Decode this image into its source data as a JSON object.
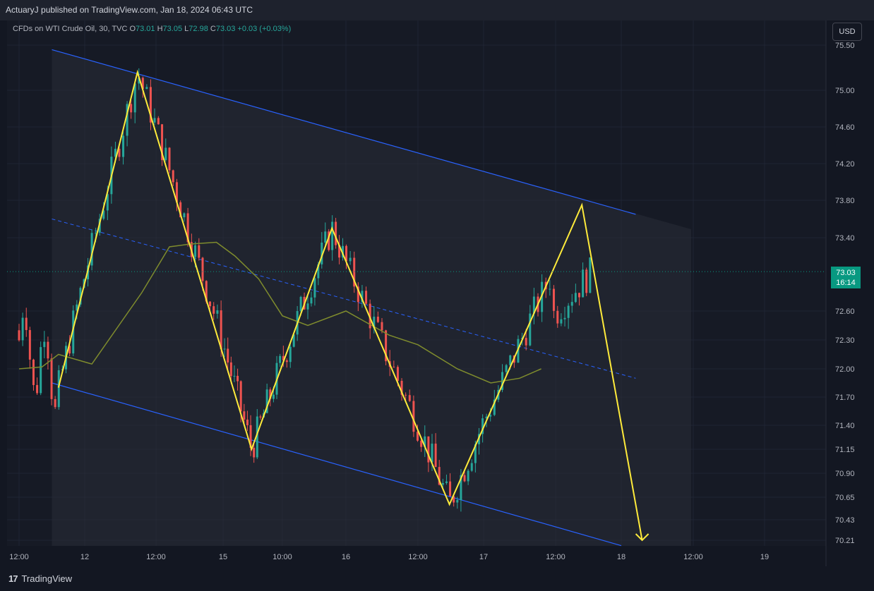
{
  "header": {
    "publisher": "ActuaryJ published on TradingView.com, Jan 18, 2024 06:43 UTC"
  },
  "legend": {
    "symbol": "CFDs on WTI Crude Oil, 30, TVC",
    "o_label": "O",
    "o_value": "73.01",
    "h_label": "H",
    "h_value": "73.05",
    "l_label": "L",
    "l_value": "72.98",
    "c_label": "C",
    "c_value": "73.03",
    "change": "+0.03 (+0.03%)"
  },
  "currency_button": "USD",
  "price_tag": {
    "price": "73.03",
    "countdown": "16:14"
  },
  "brand": {
    "name": "TradingView"
  },
  "colors": {
    "up": "#26a69a",
    "down": "#ef5350",
    "channel": "#2962ff",
    "pattern": "#ffeb3b",
    "ma": "#7f8c2d"
  },
  "chart_data": {
    "type": "line",
    "y_ticks": [
      "75.50",
      "75.00",
      "74.60",
      "74.20",
      "73.80",
      "73.40",
      "72.60",
      "72.30",
      "72.00",
      "71.70",
      "71.40",
      "71.15",
      "70.90",
      "70.65",
      "70.43",
      "70.21"
    ],
    "x_ticks": [
      "12:00",
      "12",
      "12:00",
      "15",
      "10:00",
      "16",
      "12:00",
      "17",
      "12:00",
      "18",
      "12:00",
      "19"
    ],
    "pattern_points": [
      [
        0.6,
        71.8
      ],
      [
        1.74,
        75.2
      ],
      [
        3.48,
        71.15
      ],
      [
        4.78,
        73.5
      ],
      [
        6.48,
        70.58
      ],
      [
        8.4,
        73.75
      ],
      [
        9.29,
        70.21
      ]
    ],
    "channel_upper": [
      [
        0.5,
        75.45
      ],
      [
        9.2,
        73.65
      ]
    ],
    "channel_lower": [
      [
        0.5,
        71.85
      ],
      [
        9.0,
        70.15
      ]
    ],
    "channel_mid": [
      [
        0.5,
        73.6
      ],
      [
        9.2,
        71.9
      ]
    ],
    "ma": [
      [
        0,
        72.0
      ],
      [
        0.35,
        72.02
      ],
      [
        0.6,
        72.15
      ],
      [
        1.1,
        72.05
      ],
      [
        1.8,
        72.8
      ],
      [
        2.2,
        73.3
      ],
      [
        2.5,
        73.33
      ],
      [
        2.9,
        73.35
      ],
      [
        3.2,
        73.2
      ],
      [
        3.6,
        72.95
      ],
      [
        4.0,
        72.55
      ],
      [
        4.4,
        72.45
      ],
      [
        5.0,
        72.6
      ],
      [
        5.6,
        72.35
      ],
      [
        6.0,
        72.25
      ],
      [
        6.6,
        72.0
      ],
      [
        7.1,
        71.85
      ],
      [
        7.5,
        71.9
      ],
      [
        7.8,
        72.0
      ]
    ],
    "last_price": 73.03
  }
}
